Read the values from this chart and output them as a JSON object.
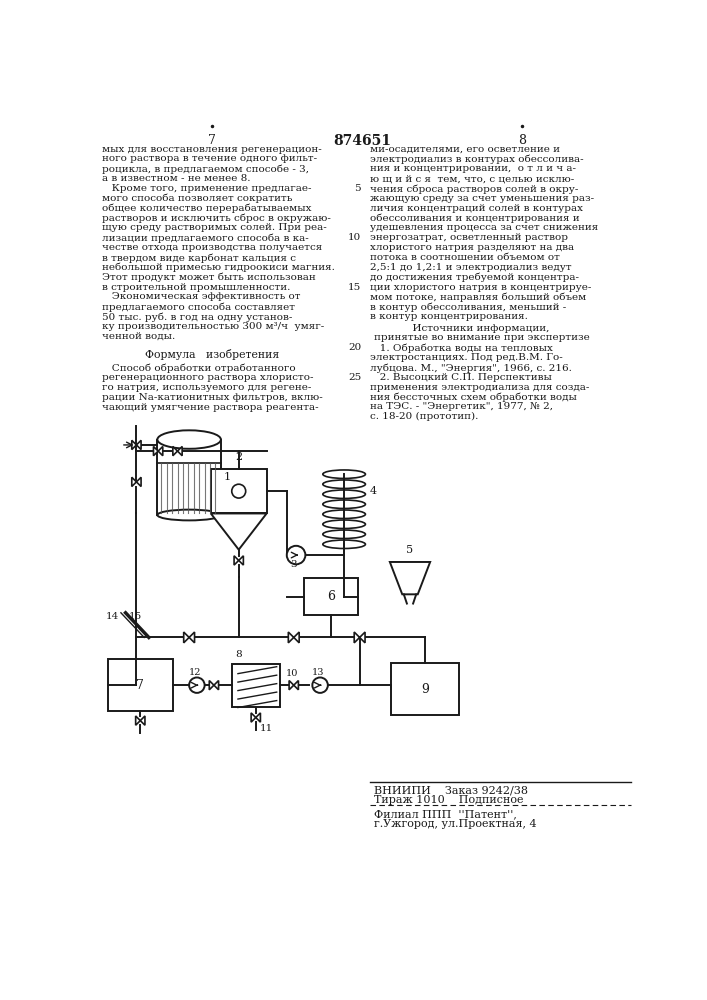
{
  "page_number_left": "7",
  "page_number_center": "874651",
  "page_number_right": "8",
  "col1_text": [
    "мых для восстановления регенерацион-",
    "ного раствора в течение одного фильт-",
    "роцикла, в предлагаемом способе - 3,",
    "а в известном - не менее 8.",
    "   Кроме того, применение предлагае-",
    "мого способа позволяет сократить",
    "общее количество перерабатываемых",
    "растворов и исключить сброс в окружаю-",
    "щую среду растворимых солей. При реа-",
    "лизации предлагаемого способа в ка-",
    "честве отхода производства получается",
    "в твердом виде карбонат кальция с",
    "небольшой примесью гидроокиси магния.",
    "Этот продукт может быть использован",
    "в строительной промышленности.",
    "   Экономическая эффективность от",
    "предлагаемого способа составляет",
    "50 тыс. руб. в год на одну установ-",
    "ку производительностью 300 м³/ч  умяг-",
    "ченной воды."
  ],
  "col1_formula_title": "Формула   изобретения",
  "col1_formula_text": [
    "   Способ обработки отработанного",
    "регенерационного раствора хлористо-",
    "го натрия, используемого для регене-",
    "рации Na-катионитных фильтров, вклю-",
    "чающий умягчение раствора реагента-"
  ],
  "col2_lines": [
    "ми-осадителями, его осветление и",
    "электродиализ в контурах обессолива-",
    "ния и концентрировании,  о т л и ч а-",
    "ю щ и й с я  тем, что, с целью исклю-",
    "чения сброса растворов солей в окру-",
    "жающую среду за счет уменьшения раз-",
    "личия концентраций солей в контурах",
    "обессоливания и концентрирования и",
    "удешевления процесса за счет снижения",
    "энергозатрат, осветленный раствор",
    "хлористого натрия разделяют на два",
    "потока в соотношении объемом от",
    "2,5:1 до 1,2:1 и электродиализ ведут",
    "до достижения требуемой концентра-",
    "ции хлористого натрия в концентрируе-",
    "мом потоке, направляя больший объем",
    "в контур обессоливания, меньший -",
    "в контур концентрирования."
  ],
  "line_numbers": {
    "4": "5",
    "9": "10",
    "14": "15",
    "19": "20",
    "23": "25"
  },
  "sources_header1": "      Источники информации,",
  "sources_header2": "принятые во внимание при экспертизе",
  "sources_lines": [
    "   1. Обработка воды на тепловых",
    "электростанциях. Под ред.В.М. Го-",
    "лубцова. М., \"Энергия\", 1966, с. 216.",
    "   2. Высоцкий С.П. Перспективы",
    "применения электродиализа для созда-",
    "ния бессточных схем обработки воды",
    "на ТЭС. - \"Энергетик\", 1977, № 2,",
    "с. 18-20 (прототип)."
  ],
  "footer_line1": "ВНИИПИ    Заказ 9242/38",
  "footer_line2": "Тираж 1010    Подписное",
  "footer_line3": "Филиал ППП  ''Патент'',",
  "footer_line4": "г.Ужгород, ул.Проектная, 4",
  "bg_color": "#ffffff"
}
